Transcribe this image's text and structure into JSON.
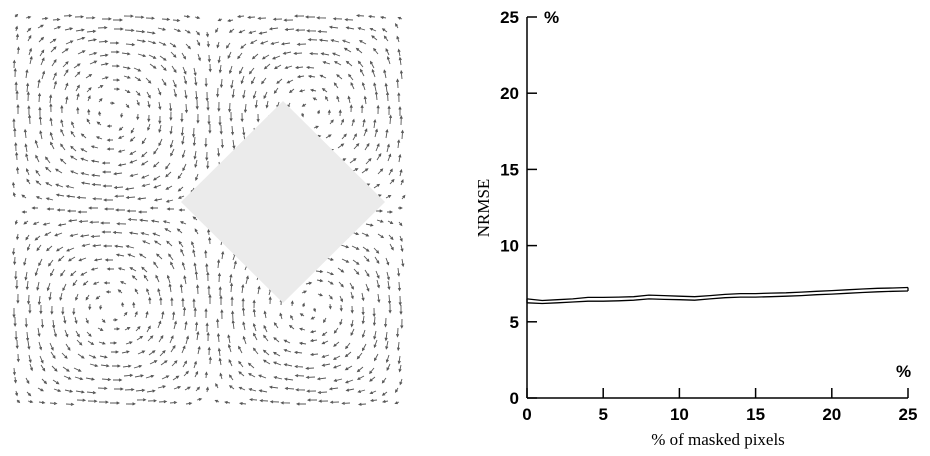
{
  "figure": {
    "left_panel": {
      "kind": "vector-field",
      "mask_color": "#ebebeb",
      "arrow_color": "#555555"
    },
    "chart_data": {
      "type": "line",
      "xlabel": "% of masked pixels",
      "ylabel": "NRMSE",
      "x_unit": "%",
      "y_unit": "%",
      "xlim": [
        0,
        25
      ],
      "ylim": [
        0,
        25
      ],
      "xticks": [
        0,
        5,
        10,
        15,
        20,
        25
      ],
      "yticks": [
        0,
        5,
        10,
        15,
        20,
        25
      ],
      "grid": false,
      "legend": "none",
      "series": [
        {
          "x": [
            0,
            1,
            2,
            3,
            4,
            5,
            6,
            7,
            8,
            9,
            10,
            11,
            12,
            13,
            14,
            15,
            16,
            17,
            18,
            19,
            20,
            21,
            22,
            23,
            24,
            25
          ],
          "upper": [
            6.5,
            6.4,
            6.45,
            6.5,
            6.6,
            6.6,
            6.62,
            6.65,
            6.75,
            6.72,
            6.68,
            6.65,
            6.72,
            6.8,
            6.85,
            6.85,
            6.88,
            6.9,
            6.95,
            7.0,
            7.05,
            7.1,
            7.15,
            7.2,
            7.22,
            7.25
          ],
          "lower": [
            6.25,
            6.2,
            6.25,
            6.3,
            6.35,
            6.35,
            6.38,
            6.42,
            6.5,
            6.47,
            6.45,
            6.42,
            6.5,
            6.58,
            6.62,
            6.62,
            6.65,
            6.68,
            6.72,
            6.78,
            6.82,
            6.87,
            6.92,
            6.97,
            7.0,
            7.02
          ]
        }
      ]
    }
  }
}
